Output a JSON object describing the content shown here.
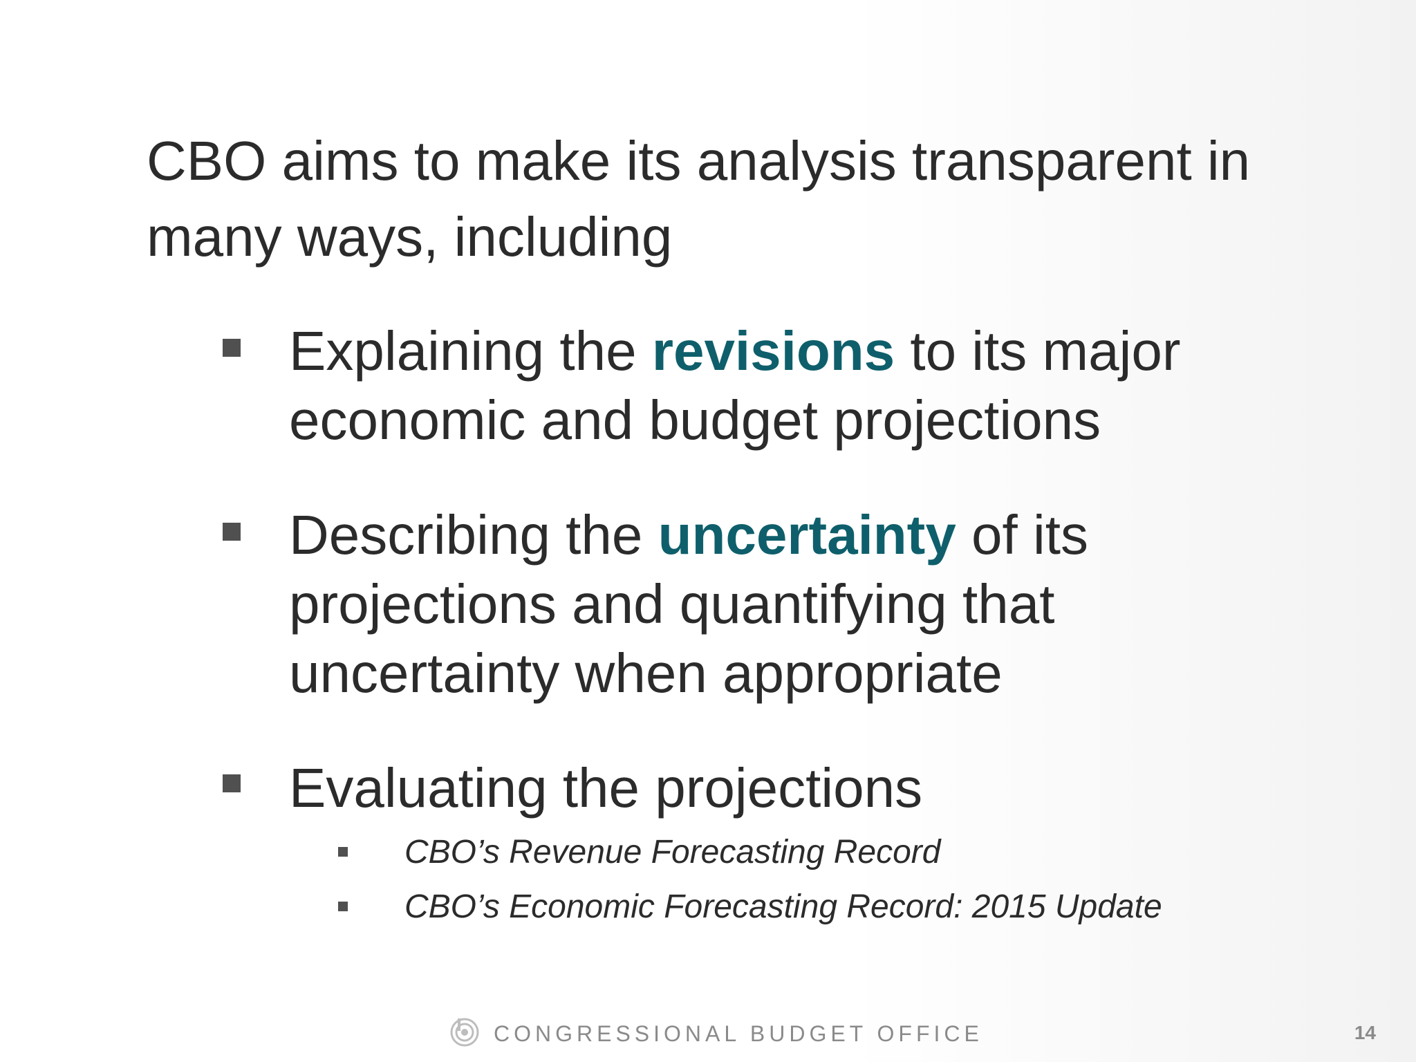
{
  "slide": {
    "title": "CBO aims to make its analysis transparent in many ways, including",
    "bullets": [
      {
        "before": "Explaining the ",
        "highlight": "revisions",
        "after": " to its major economic and budget projections"
      },
      {
        "before": "Describing the ",
        "highlight": "uncertainty",
        "after": " of its projections and quantifying that uncertainty when appropriate"
      },
      {
        "text": "Evaluating the projections",
        "subitems": [
          "CBO’s Revenue Forecasting Record",
          "CBO’s Economic Forecasting Record: 2015 Update"
        ]
      }
    ],
    "highlight_color": "#0e5f6b"
  },
  "footer": {
    "logo_icon": "cbo-logo-icon",
    "org_name": "CONGRESSIONAL BUDGET OFFICE",
    "page_number": "14"
  }
}
